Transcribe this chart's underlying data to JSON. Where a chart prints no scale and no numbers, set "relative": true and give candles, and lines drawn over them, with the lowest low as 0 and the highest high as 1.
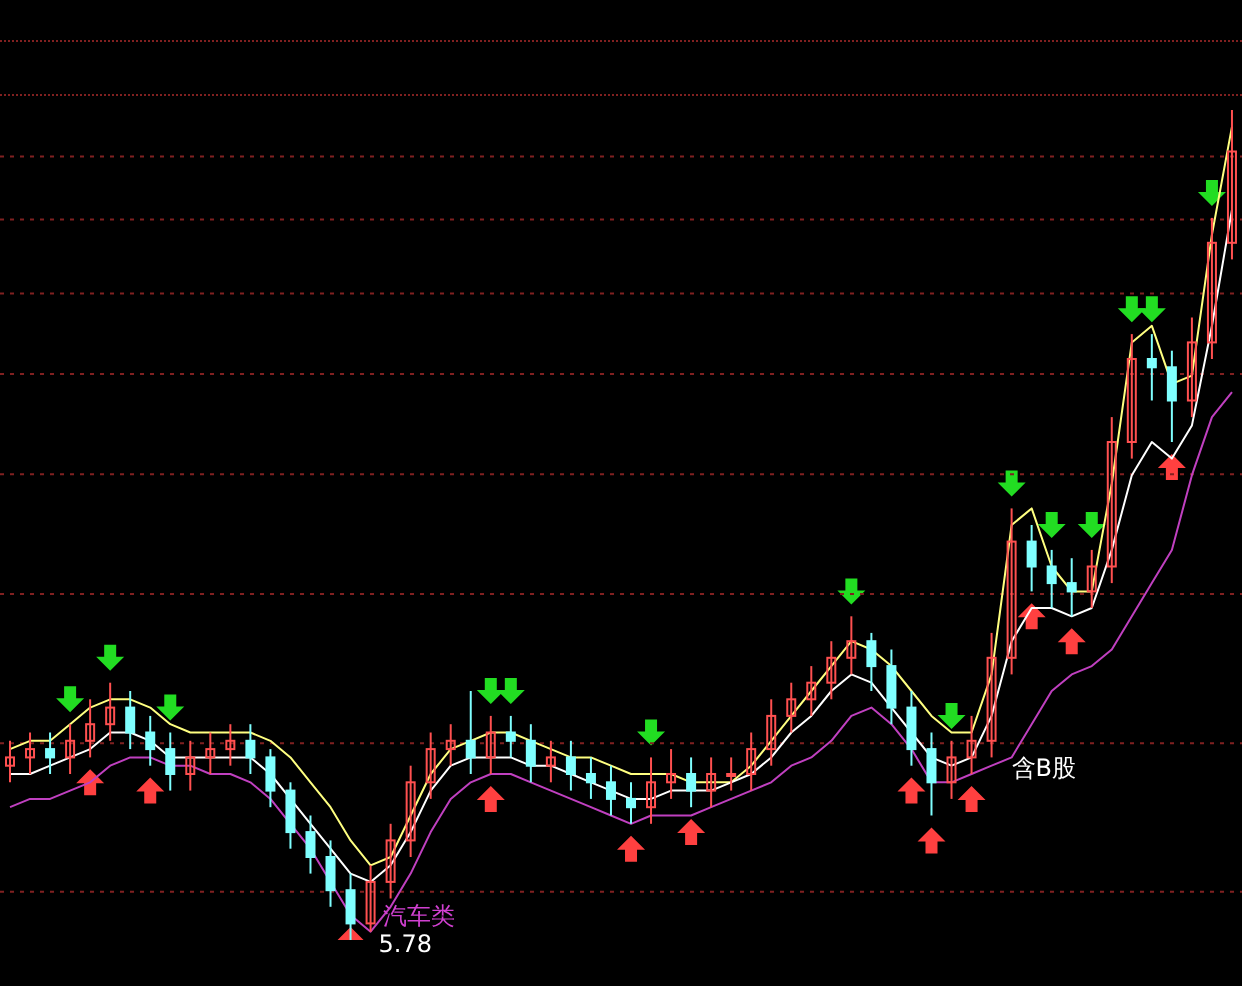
{
  "chart_data": {
    "type": "candlestick",
    "relative": true,
    "categories": [
      null,
      null,
      null,
      null,
      null,
      null,
      null,
      null,
      null,
      null,
      null,
      null,
      null,
      null,
      null,
      null,
      null,
      null,
      null,
      null,
      null,
      null,
      null,
      null,
      null,
      null,
      null,
      null,
      null,
      null,
      null,
      null,
      null,
      null,
      null,
      null,
      null,
      null,
      null,
      null,
      null,
      null,
      null,
      null,
      null,
      null,
      null,
      null,
      null,
      null,
      null,
      null,
      null,
      null,
      null,
      null,
      null,
      null,
      null,
      null,
      null,
      null
    ],
    "ohlc": [
      [
        0.21,
        0.24,
        0.19,
        0.22
      ],
      [
        0.22,
        0.25,
        0.2,
        0.23
      ],
      [
        0.23,
        0.25,
        0.2,
        0.22
      ],
      [
        0.22,
        0.26,
        0.2,
        0.24
      ],
      [
        0.24,
        0.29,
        0.22,
        0.26
      ],
      [
        0.26,
        0.31,
        0.24,
        0.28
      ],
      [
        0.28,
        0.3,
        0.23,
        0.25
      ],
      [
        0.25,
        0.27,
        0.21,
        0.23
      ],
      [
        0.23,
        0.25,
        0.18,
        0.2
      ],
      [
        0.2,
        0.24,
        0.18,
        0.22
      ],
      [
        0.22,
        0.25,
        0.2,
        0.23
      ],
      [
        0.23,
        0.26,
        0.21,
        0.24
      ],
      [
        0.24,
        0.26,
        0.2,
        0.22
      ],
      [
        0.22,
        0.23,
        0.16,
        0.18
      ],
      [
        0.18,
        0.19,
        0.11,
        0.13
      ],
      [
        0.13,
        0.15,
        0.08,
        0.1
      ],
      [
        0.1,
        0.12,
        0.04,
        0.06
      ],
      [
        0.06,
        0.08,
        0,
        0.02
      ],
      [
        0.02,
        0.09,
        0.01,
        0.07
      ],
      [
        0.07,
        0.14,
        0.05,
        0.12
      ],
      [
        0.12,
        0.21,
        0.1,
        0.19
      ],
      [
        0.19,
        0.25,
        0.17,
        0.23
      ],
      [
        0.23,
        0.26,
        0.21,
        0.24
      ],
      [
        0.24,
        0.3,
        0.2,
        0.22
      ],
      [
        0.22,
        0.27,
        0.2,
        0.25
      ],
      [
        0.25,
        0.27,
        0.22,
        0.24
      ],
      [
        0.24,
        0.26,
        0.19,
        0.21
      ],
      [
        0.21,
        0.24,
        0.19,
        0.22
      ],
      [
        0.22,
        0.24,
        0.18,
        0.2
      ],
      [
        0.2,
        0.22,
        0.17,
        0.19
      ],
      [
        0.19,
        0.21,
        0.15,
        0.17
      ],
      [
        0.17,
        0.19,
        0.14,
        0.16
      ],
      [
        0.16,
        0.22,
        0.14,
        0.19
      ],
      [
        0.19,
        0.23,
        0.17,
        0.2
      ],
      [
        0.2,
        0.22,
        0.16,
        0.18
      ],
      [
        0.18,
        0.22,
        0.16,
        0.2
      ],
      [
        0.2,
        0.22,
        0.18,
        0.2
      ],
      [
        0.2,
        0.25,
        0.18,
        0.23
      ],
      [
        0.23,
        0.29,
        0.21,
        0.27
      ],
      [
        0.27,
        0.31,
        0.25,
        0.29
      ],
      [
        0.29,
        0.33,
        0.27,
        0.31
      ],
      [
        0.31,
        0.36,
        0.29,
        0.34
      ],
      [
        0.34,
        0.39,
        0.32,
        0.36
      ],
      [
        0.36,
        0.37,
        0.3,
        0.33
      ],
      [
        0.33,
        0.35,
        0.26,
        0.28
      ],
      [
        0.28,
        0.3,
        0.21,
        0.23
      ],
      [
        0.23,
        0.25,
        0.15,
        0.19
      ],
      [
        0.19,
        0.24,
        0.17,
        0.22
      ],
      [
        0.22,
        0.27,
        0.2,
        0.24
      ],
      [
        0.24,
        0.37,
        0.22,
        0.34
      ],
      [
        0.34,
        0.52,
        0.32,
        0.48
      ],
      [
        0.48,
        0.5,
        0.42,
        0.45
      ],
      [
        0.45,
        0.47,
        0.4,
        0.43
      ],
      [
        0.43,
        0.46,
        0.39,
        0.42
      ],
      [
        0.42,
        0.47,
        0.4,
        0.45
      ],
      [
        0.45,
        0.63,
        0.43,
        0.6
      ],
      [
        0.6,
        0.73,
        0.58,
        0.7
      ],
      [
        0.7,
        0.73,
        0.65,
        0.69
      ],
      [
        0.69,
        0.71,
        0.6,
        0.65
      ],
      [
        0.65,
        0.75,
        0.63,
        0.72
      ],
      [
        0.72,
        0.87,
        0.7,
        0.84
      ],
      [
        0.84,
        1,
        0.82,
        0.95
      ]
    ],
    "colors": [
      "#ff5050",
      "#ff5050",
      "#7fffff",
      "#ff5050",
      "#ff5050",
      "#ff5050",
      "#7fffff",
      "#7fffff",
      "#7fffff",
      "#ff5050",
      "#ff5050",
      "#ff5050",
      "#7fffff",
      "#7fffff",
      "#7fffff",
      "#7fffff",
      "#7fffff",
      "#7fffff",
      "#ff5050",
      "#ff5050",
      "#ff5050",
      "#ff5050",
      "#ff5050",
      "#7fffff",
      "#ff5050",
      "#7fffff",
      "#7fffff",
      "#ff5050",
      "#7fffff",
      "#7fffff",
      "#7fffff",
      "#7fffff",
      "#ff5050",
      "#ff5050",
      "#7fffff",
      "#ff5050",
      "#ff5050",
      "#ff5050",
      "#ff5050",
      "#ff5050",
      "#ff5050",
      "#ff5050",
      "#ff5050",
      "#7fffff",
      "#7fffff",
      "#7fffff",
      "#7fffff",
      "#ff5050",
      "#ff5050",
      "#ff5050",
      "#ff5050",
      "#7fffff",
      "#7fffff",
      "#7fffff",
      "#ff5050",
      "#ff5050",
      "#ff5050",
      "#7fffff",
      "#7fffff",
      "#ff5050",
      "#ff5050",
      "#ff5050"
    ],
    "series": [
      {
        "type": "line",
        "color": "#ffff80",
        "values": [
          0.23,
          0.24,
          0.24,
          0.26,
          0.28,
          0.29,
          0.29,
          0.28,
          0.26,
          0.25,
          0.25,
          0.25,
          0.25,
          0.24,
          0.22,
          0.19,
          0.16,
          0.12,
          0.09,
          0.1,
          0.15,
          0.2,
          0.23,
          0.24,
          0.25,
          0.25,
          0.24,
          0.23,
          0.22,
          0.22,
          0.21,
          0.2,
          0.2,
          0.2,
          0.19,
          0.19,
          0.19,
          0.21,
          0.24,
          0.27,
          0.3,
          0.33,
          0.36,
          0.35,
          0.33,
          0.3,
          0.27,
          0.25,
          0.25,
          0.32,
          0.5,
          0.52,
          0.45,
          0.42,
          0.42,
          0.55,
          0.72,
          0.74,
          0.67,
          0.68,
          0.85,
          0.98
        ]
      },
      {
        "type": "line",
        "color": "#ffffff",
        "values": [
          0.2,
          0.2,
          0.21,
          0.22,
          0.23,
          0.25,
          0.25,
          0.24,
          0.22,
          0.22,
          0.22,
          0.22,
          0.22,
          0.2,
          0.17,
          0.14,
          0.11,
          0.08,
          0.07,
          0.09,
          0.13,
          0.18,
          0.21,
          0.22,
          0.22,
          0.22,
          0.21,
          0.21,
          0.2,
          0.19,
          0.18,
          0.17,
          0.17,
          0.18,
          0.18,
          0.18,
          0.19,
          0.2,
          0.22,
          0.25,
          0.27,
          0.3,
          0.32,
          0.31,
          0.28,
          0.25,
          0.22,
          0.21,
          0.22,
          0.27,
          0.36,
          0.4,
          0.4,
          0.39,
          0.4,
          0.47,
          0.56,
          0.6,
          0.58,
          0.62,
          0.74,
          0.88
        ]
      },
      {
        "type": "line",
        "color": "#c040c0",
        "values": [
          0.16,
          0.17,
          0.17,
          0.18,
          0.19,
          0.21,
          0.22,
          0.22,
          0.21,
          0.21,
          0.2,
          0.2,
          0.19,
          0.17,
          0.14,
          0.11,
          0.07,
          0.03,
          0.01,
          0.04,
          0.08,
          0.13,
          0.17,
          0.19,
          0.2,
          0.2,
          0.19,
          0.18,
          0.17,
          0.16,
          0.15,
          0.14,
          0.15,
          0.15,
          0.15,
          0.16,
          0.17,
          0.18,
          0.19,
          0.21,
          0.22,
          0.24,
          0.27,
          0.28,
          0.26,
          0.23,
          0.19,
          0.19,
          0.2,
          0.21,
          0.22,
          0.26,
          0.3,
          0.32,
          0.33,
          0.35,
          0.39,
          0.43,
          0.47,
          0.56,
          0.63,
          0.66
        ]
      },
      {
        "type": "scatter",
        "color": "#22dd22",
        "values": [
          null,
          null,
          null,
          0.29,
          null,
          0.34,
          null,
          null,
          0.28,
          null,
          null,
          null,
          null,
          null,
          null,
          null,
          null,
          null,
          null,
          null,
          null,
          null,
          null,
          null,
          0.3,
          0.3,
          null,
          null,
          null,
          null,
          null,
          null,
          0.25,
          null,
          null,
          null,
          null,
          null,
          null,
          null,
          null,
          null,
          0.42,
          null,
          null,
          null,
          null,
          0.27,
          null,
          null,
          0.55,
          null,
          0.5,
          null,
          0.5,
          null,
          0.76,
          0.76,
          null,
          null,
          0.9,
          null
        ]
      },
      {
        "type": "scatter",
        "color": "#ff4040",
        "values": [
          null,
          null,
          null,
          null,
          0.19,
          null,
          null,
          0.18,
          null,
          null,
          null,
          null,
          null,
          null,
          null,
          null,
          null,
          0,
          null,
          null,
          null,
          null,
          null,
          null,
          0.17,
          null,
          null,
          null,
          null,
          null,
          null,
          0.11,
          null,
          null,
          0.13,
          null,
          null,
          null,
          null,
          null,
          null,
          null,
          null,
          null,
          null,
          0.18,
          0.12,
          null,
          0.17,
          null,
          null,
          0.39,
          null,
          0.36,
          null,
          null,
          null,
          null,
          0.57,
          null,
          null,
          null
        ]
      }
    ],
    "ref_lines": [
      {
        "axis": "y",
        "value": 0.944,
        "color": "#802020",
        "line_style": "dotted"
      },
      {
        "axis": "y",
        "value": 0.868,
        "color": "#802020",
        "line_style": "dotted"
      },
      {
        "axis": "y",
        "value": 0.779,
        "color": "#802020",
        "line_style": "dotted"
      },
      {
        "axis": "y",
        "value": 0.682,
        "color": "#802020",
        "line_style": "dotted"
      },
      {
        "axis": "y",
        "value": 0.561,
        "color": "#802020",
        "line_style": "dotted"
      },
      {
        "axis": "y",
        "value": 0.417,
        "color": "#802020",
        "line_style": "dotted"
      },
      {
        "axis": "y",
        "value": 0.237,
        "color": "#802020",
        "line_style": "dotted"
      },
      {
        "axis": "y",
        "value": 0.058,
        "color": "#802020",
        "line_style": "dotted"
      }
    ],
    "annotations": [
      "汽车类",
      "5.78",
      "含B股"
    ]
  }
}
